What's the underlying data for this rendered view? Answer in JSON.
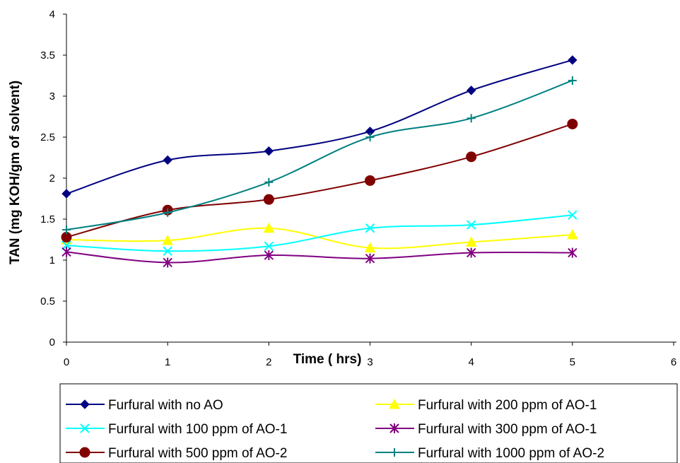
{
  "chart_data": {
    "type": "line",
    "xlabel": "Time ( hrs)",
    "ylabel": "TAN (mg KOH/gm of solvent)",
    "xlim": [
      0,
      6
    ],
    "ylim": [
      0,
      4
    ],
    "x_ticks": [
      "0",
      "1",
      "2",
      "3",
      "4",
      "5",
      "6"
    ],
    "y_ticks": [
      "0",
      "0.5",
      "1",
      "1.5",
      "2",
      "2.5",
      "3",
      "3.5",
      "4"
    ],
    "grid": false,
    "legend_position": "bottom",
    "x": [
      0,
      1,
      2,
      3,
      4,
      5
    ],
    "series": [
      {
        "name": "Furfural with no AO",
        "color": "#000080",
        "marker": "diamond",
        "values": [
          1.81,
          2.22,
          2.33,
          2.57,
          3.07,
          3.44
        ]
      },
      {
        "name": "Furfural with 200 ppm of AO-1",
        "color": "#FFFF00",
        "marker": "triangle",
        "values": [
          1.25,
          1.24,
          1.39,
          1.15,
          1.22,
          1.31
        ]
      },
      {
        "name": "Furfural with 100 ppm of AO-1",
        "color": "#00FFFF",
        "marker": "x",
        "values": [
          1.18,
          1.11,
          1.17,
          1.39,
          1.43,
          1.55
        ]
      },
      {
        "name": "Furfural with 300 ppm of AO-1",
        "color": "#800080",
        "marker": "star",
        "values": [
          1.1,
          0.97,
          1.06,
          1.02,
          1.09,
          1.09
        ]
      },
      {
        "name": "Furfural with 500 ppm of AO-2",
        "color": "#800000",
        "marker": "circle",
        "values": [
          1.28,
          1.61,
          1.74,
          1.97,
          2.26,
          2.66
        ]
      },
      {
        "name": "Furfural with 1000 ppm of AO-2",
        "color": "#008080",
        "marker": "plus",
        "values": [
          1.37,
          1.58,
          1.95,
          2.5,
          2.73,
          3.19
        ]
      }
    ]
  }
}
